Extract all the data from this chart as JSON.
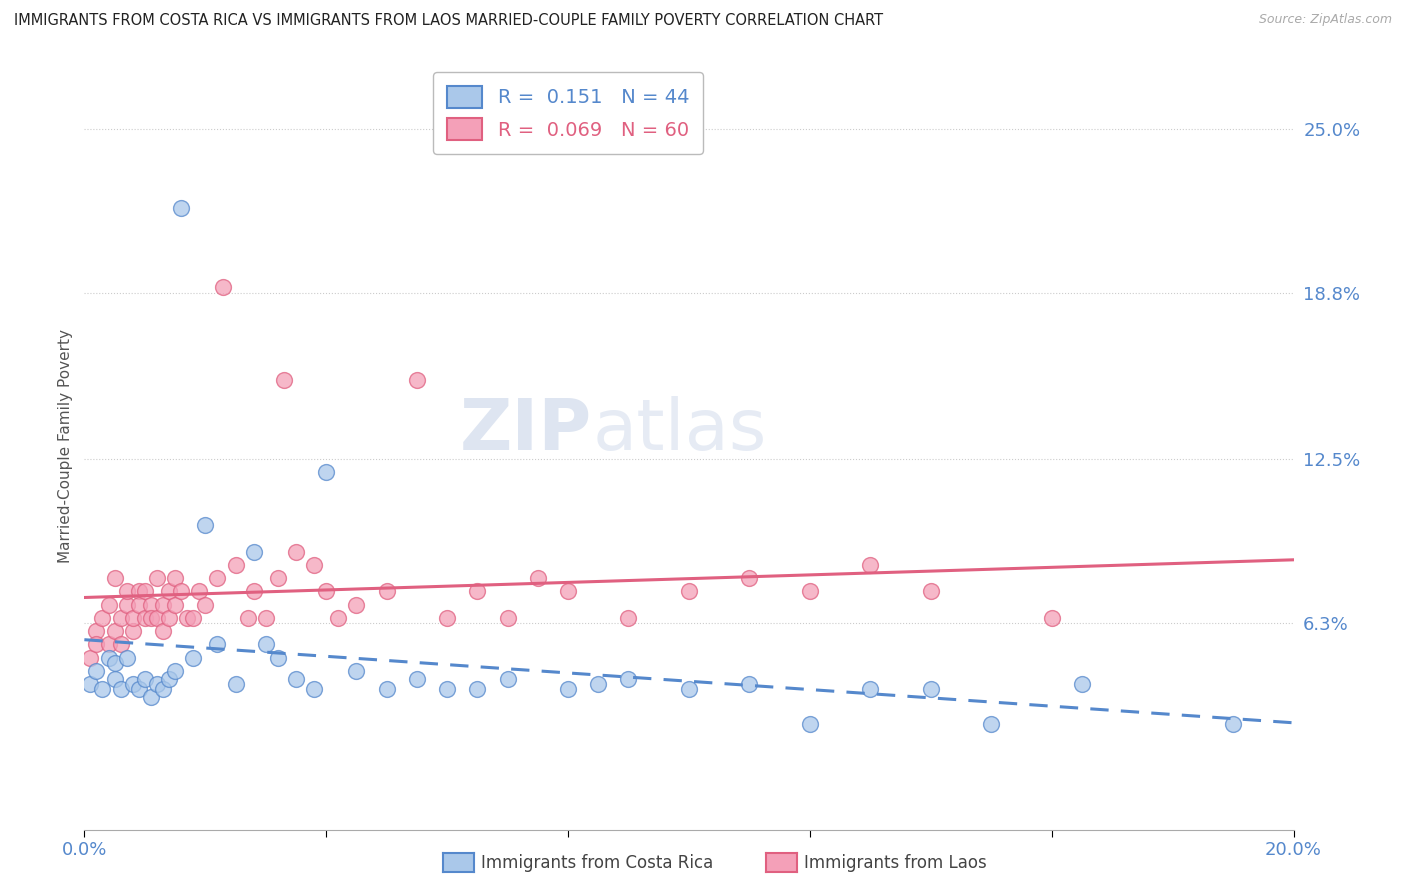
{
  "title": "IMMIGRANTS FROM COSTA RICA VS IMMIGRANTS FROM LAOS MARRIED-COUPLE FAMILY POVERTY CORRELATION CHART",
  "source": "Source: ZipAtlas.com",
  "ylabel": "Married-Couple Family Poverty",
  "xlim": [
    0.0,
    0.2
  ],
  "ylim": [
    -0.015,
    0.275
  ],
  "ytick_vals": [
    0.063,
    0.125,
    0.188,
    0.25
  ],
  "ytick_labels": [
    "6.3%",
    "12.5%",
    "18.8%",
    "25.0%"
  ],
  "grid_color": "#cccccc",
  "background_color": "#ffffff",
  "series1_color": "#aac8ea",
  "series2_color": "#f4a0b8",
  "series1_label": "Immigrants from Costa Rica",
  "series2_label": "Immigrants from Laos",
  "series1_R": "0.151",
  "series1_N": "44",
  "series2_R": "0.069",
  "series2_N": "60",
  "series1_line_color": "#5588cc",
  "series2_line_color": "#e06080",
  "watermark_color": "#d0dcea",
  "costa_rica_x": [
    0.001,
    0.002,
    0.003,
    0.004,
    0.005,
    0.005,
    0.006,
    0.007,
    0.008,
    0.009,
    0.01,
    0.011,
    0.012,
    0.013,
    0.014,
    0.015,
    0.016,
    0.018,
    0.02,
    0.022,
    0.025,
    0.028,
    0.03,
    0.032,
    0.035,
    0.038,
    0.04,
    0.045,
    0.05,
    0.055,
    0.06,
    0.065,
    0.07,
    0.08,
    0.085,
    0.09,
    0.1,
    0.11,
    0.12,
    0.13,
    0.14,
    0.15,
    0.165,
    0.19
  ],
  "costa_rica_y": [
    0.04,
    0.045,
    0.038,
    0.05,
    0.042,
    0.048,
    0.038,
    0.05,
    0.04,
    0.038,
    0.042,
    0.035,
    0.04,
    0.038,
    0.042,
    0.045,
    0.22,
    0.05,
    0.1,
    0.055,
    0.04,
    0.09,
    0.055,
    0.05,
    0.042,
    0.038,
    0.12,
    0.045,
    0.038,
    0.042,
    0.038,
    0.038,
    0.042,
    0.038,
    0.04,
    0.042,
    0.038,
    0.04,
    0.025,
    0.038,
    0.038,
    0.025,
    0.04,
    0.025
  ],
  "laos_x": [
    0.001,
    0.002,
    0.002,
    0.003,
    0.004,
    0.004,
    0.005,
    0.005,
    0.006,
    0.006,
    0.007,
    0.007,
    0.008,
    0.008,
    0.009,
    0.009,
    0.01,
    0.01,
    0.011,
    0.011,
    0.012,
    0.012,
    0.013,
    0.013,
    0.014,
    0.014,
    0.015,
    0.015,
    0.016,
    0.017,
    0.018,
    0.019,
    0.02,
    0.022,
    0.023,
    0.025,
    0.027,
    0.028,
    0.03,
    0.032,
    0.033,
    0.035,
    0.038,
    0.04,
    0.042,
    0.045,
    0.05,
    0.055,
    0.06,
    0.065,
    0.07,
    0.075,
    0.08,
    0.09,
    0.1,
    0.11,
    0.12,
    0.13,
    0.14,
    0.16
  ],
  "laos_y": [
    0.05,
    0.06,
    0.055,
    0.065,
    0.07,
    0.055,
    0.06,
    0.08,
    0.065,
    0.055,
    0.07,
    0.075,
    0.06,
    0.065,
    0.075,
    0.07,
    0.065,
    0.075,
    0.07,
    0.065,
    0.08,
    0.065,
    0.06,
    0.07,
    0.075,
    0.065,
    0.07,
    0.08,
    0.075,
    0.065,
    0.065,
    0.075,
    0.07,
    0.08,
    0.19,
    0.085,
    0.065,
    0.075,
    0.065,
    0.08,
    0.155,
    0.09,
    0.085,
    0.075,
    0.065,
    0.07,
    0.075,
    0.155,
    0.065,
    0.075,
    0.065,
    0.08,
    0.075,
    0.065,
    0.075,
    0.08,
    0.075,
    0.085,
    0.075,
    0.065
  ]
}
